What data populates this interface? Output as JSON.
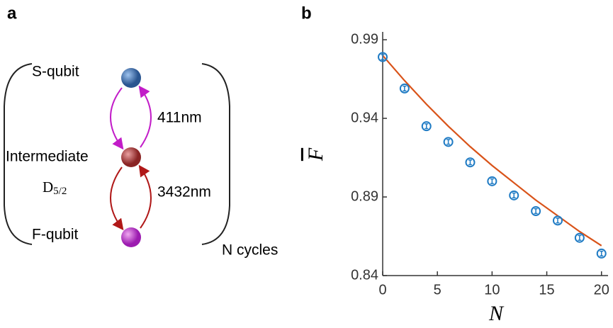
{
  "panel_a": {
    "label": "a",
    "s_qubit": "S-qubit",
    "transition_upper": "411nm",
    "intermediate": "Intermediate",
    "level": {
      "base": "D",
      "subscript": "5/2"
    },
    "transition_lower": "3432nm",
    "f_qubit": "F-qubit",
    "cycles": "N cycles"
  },
  "panel_b": {
    "label": "b"
  },
  "chart_data": {
    "type": "scatter",
    "xlabel": "N",
    "ylabel": "F",
    "x": [
      0,
      2,
      4,
      6,
      8,
      10,
      12,
      14,
      16,
      18,
      20
    ],
    "series": [
      {
        "color": "#1f7bc4",
        "values": [
          0.979,
          0.959,
          0.935,
          0.925,
          0.912,
          0.9,
          0.891,
          0.881,
          0.875,
          0.864,
          0.854
        ],
        "errors": [
          0.0015,
          0.0015,
          0.0015,
          0.0015,
          0.0015,
          0.0015,
          0.0015,
          0.0015,
          0.0015,
          0.0015,
          0.0015
        ]
      }
    ],
    "fit": {
      "color": "#d95319",
      "values": [
        0.98,
        0.964,
        0.949,
        0.935,
        0.922,
        0.91,
        0.899,
        0.888,
        0.878,
        0.868,
        0.859
      ]
    },
    "xlim": [
      0,
      20.6
    ],
    "ylim": [
      0.84,
      0.995
    ],
    "xticks": [
      0,
      5,
      10,
      15,
      20
    ],
    "yticks": [
      0.84,
      0.89,
      0.94,
      0.99
    ]
  }
}
